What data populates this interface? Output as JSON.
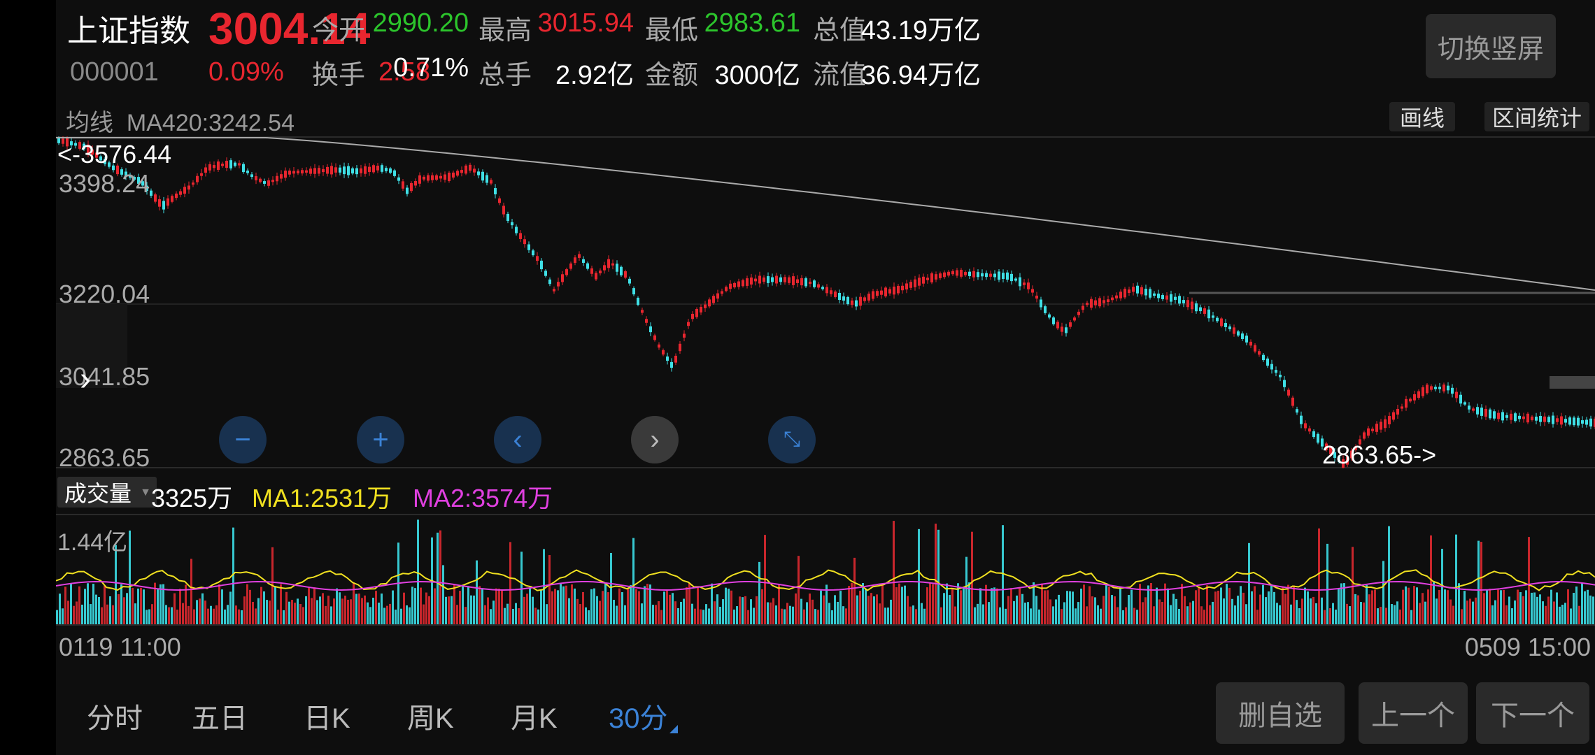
{
  "stock": {
    "name": "上证指数",
    "code": "000001",
    "price": "3004.14",
    "pct": "0.09%",
    "change": "2.58"
  },
  "stats": [
    {
      "label": "今开",
      "value": "2990.20",
      "color": "#2cc52c"
    },
    {
      "label": "最高",
      "value": "3015.94",
      "color": "#e8262f"
    },
    {
      "label": "最低",
      "value": "2983.61",
      "color": "#2cc52c"
    },
    {
      "label": "总值",
      "value": "43.19万亿",
      "color": "#ffffff"
    },
    {
      "label": "换手",
      "value": "0.71%",
      "color": "#ffffff"
    },
    {
      "label": "总手",
      "value": "2.92亿",
      "color": "#ffffff"
    },
    {
      "label": "金额",
      "value": "3000亿",
      "color": "#ffffff"
    },
    {
      "label": "流值",
      "value": "36.94万亿",
      "color": "#ffffff"
    }
  ],
  "switch_label": "切换竖屏",
  "ma_line": {
    "label": "均线",
    "value": "MA420:3242.54"
  },
  "tools": {
    "draw": "画线",
    "range_stats": "区间统计"
  },
  "chart": {
    "high_marker": "<-3576.44",
    "low_marker": "2863.65->",
    "y_labels": [
      "3576.44",
      "3398.24",
      "3220.04",
      "3041.85",
      "2863.65"
    ]
  },
  "volume": {
    "tag": "成交量",
    "now": "3325万",
    "ma1": "MA1:2531万",
    "ma2": "MA2:3574万",
    "max": "1.44亿"
  },
  "time_axis": {
    "start": "0119 11:00",
    "end": "0509 15:00"
  },
  "tabs": [
    "分时",
    "五日",
    "日K",
    "周K",
    "月K",
    "30分"
  ],
  "actions": {
    "remove": "删自选",
    "prev": "上一个",
    "next": "下一个"
  },
  "colors": {
    "up": "#e8262f",
    "down": "#3fe0e6",
    "flat": "#2cc52c",
    "accent": "#3b82d6"
  }
}
